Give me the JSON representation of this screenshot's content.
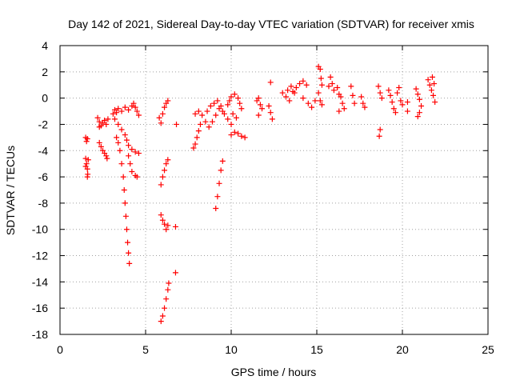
{
  "chart_data": {
    "type": "scatter",
    "title": "Day 142 of 2021, Sidereal Day-to-day VTEC variation (SDTVAR) for receiver xmis",
    "xlabel": "GPS time / hours",
    "ylabel": "SDTVAR / TECUs",
    "xlim": [
      0,
      25
    ],
    "ylim": [
      -18,
      4
    ],
    "xticks": [
      0,
      5,
      10,
      15,
      20,
      25
    ],
    "yticks": [
      4,
      2,
      0,
      -2,
      -4,
      -6,
      -8,
      -10,
      -12,
      -14,
      -16,
      -18
    ],
    "grid": true,
    "marker": "+",
    "color": "#ff0000",
    "series": [
      {
        "name": "SDTVAR",
        "points": [
          [
            1.5,
            -3.0
          ],
          [
            1.55,
            -3.3
          ],
          [
            1.6,
            -3.1
          ],
          [
            1.5,
            -4.6
          ],
          [
            1.55,
            -5.0
          ],
          [
            1.6,
            -5.4
          ],
          [
            1.62,
            -5.8
          ],
          [
            1.6,
            -6.0
          ],
          [
            1.5,
            -5.2
          ],
          [
            1.65,
            -4.7
          ],
          [
            2.2,
            -1.5
          ],
          [
            2.3,
            -1.8
          ],
          [
            2.4,
            -2.1
          ],
          [
            2.5,
            -1.9
          ],
          [
            2.6,
            -1.7
          ],
          [
            2.7,
            -2.0
          ],
          [
            2.8,
            -1.6
          ],
          [
            2.3,
            -2.2
          ],
          [
            2.3,
            -3.4
          ],
          [
            2.4,
            -3.7
          ],
          [
            2.5,
            -4.0
          ],
          [
            2.6,
            -4.2
          ],
          [
            2.7,
            -4.4
          ],
          [
            2.75,
            -4.6
          ],
          [
            3.1,
            -1.2
          ],
          [
            3.2,
            -0.9
          ],
          [
            3.3,
            -1.1
          ],
          [
            3.4,
            -0.8
          ],
          [
            3.6,
            -1.0
          ],
          [
            3.8,
            -0.7
          ],
          [
            4.0,
            -0.9
          ],
          [
            4.2,
            -0.6
          ],
          [
            4.3,
            -0.4
          ],
          [
            4.4,
            -0.7
          ],
          [
            4.5,
            -1.0
          ],
          [
            4.6,
            -1.3
          ],
          [
            3.2,
            -1.6
          ],
          [
            3.4,
            -2.0
          ],
          [
            3.6,
            -2.4
          ],
          [
            3.8,
            -2.8
          ],
          [
            3.9,
            -3.2
          ],
          [
            4.0,
            -3.6
          ],
          [
            4.2,
            -3.9
          ],
          [
            4.4,
            -4.1
          ],
          [
            4.6,
            -4.2
          ],
          [
            3.3,
            -3.0
          ],
          [
            3.4,
            -3.4
          ],
          [
            3.5,
            -4.0
          ],
          [
            3.6,
            -5.0
          ],
          [
            3.7,
            -6.0
          ],
          [
            3.75,
            -7.0
          ],
          [
            3.8,
            -8.0
          ],
          [
            3.85,
            -9.0
          ],
          [
            3.9,
            -10.0
          ],
          [
            3.95,
            -11.0
          ],
          [
            4.0,
            -11.8
          ],
          [
            4.05,
            -12.6
          ],
          [
            4.0,
            -4.4
          ],
          [
            4.1,
            -5.0
          ],
          [
            4.2,
            -5.6
          ],
          [
            4.4,
            -5.9
          ],
          [
            4.5,
            -6.0
          ],
          [
            5.8,
            -1.5
          ],
          [
            5.9,
            -1.9
          ],
          [
            6.0,
            -1.2
          ],
          [
            6.1,
            -0.7
          ],
          [
            6.2,
            -0.4
          ],
          [
            6.3,
            -0.2
          ],
          [
            5.9,
            -6.6
          ],
          [
            6.0,
            -6.0
          ],
          [
            6.1,
            -5.5
          ],
          [
            6.2,
            -5.0
          ],
          [
            6.3,
            -4.7
          ],
          [
            5.9,
            -8.9
          ],
          [
            6.0,
            -9.3
          ],
          [
            6.1,
            -9.6
          ],
          [
            6.2,
            -10.0
          ],
          [
            6.3,
            -9.7
          ],
          [
            5.9,
            -17.0
          ],
          [
            6.0,
            -16.6
          ],
          [
            6.1,
            -16.0
          ],
          [
            6.2,
            -15.3
          ],
          [
            6.3,
            -14.6
          ],
          [
            6.35,
            -14.1
          ],
          [
            6.8,
            -2.0
          ],
          [
            6.75,
            -9.8
          ],
          [
            6.75,
            -13.3
          ],
          [
            7.8,
            -3.8
          ],
          [
            7.9,
            -3.5
          ],
          [
            8.0,
            -3.0
          ],
          [
            8.1,
            -2.5
          ],
          [
            8.2,
            -2.0
          ],
          [
            7.9,
            -1.2
          ],
          [
            8.1,
            -1.0
          ],
          [
            8.3,
            -1.3
          ],
          [
            8.5,
            -1.8
          ],
          [
            8.7,
            -2.2
          ],
          [
            8.9,
            -1.8
          ],
          [
            9.1,
            -1.3
          ],
          [
            9.3,
            -0.8
          ],
          [
            9.5,
            -1.0
          ],
          [
            8.6,
            -1.0
          ],
          [
            8.8,
            -0.6
          ],
          [
            9.0,
            -0.4
          ],
          [
            9.2,
            -0.2
          ],
          [
            9.4,
            -0.6
          ],
          [
            9.6,
            -1.2
          ],
          [
            9.8,
            -1.6
          ],
          [
            10.0,
            -2.0
          ],
          [
            9.1,
            -8.4
          ],
          [
            9.2,
            -7.5
          ],
          [
            9.3,
            -6.5
          ],
          [
            9.4,
            -5.5
          ],
          [
            9.5,
            -4.8
          ],
          [
            9.8,
            -0.5
          ],
          [
            9.9,
            -0.2
          ],
          [
            10.0,
            0.1
          ],
          [
            10.2,
            0.3
          ],
          [
            10.4,
            0.0
          ],
          [
            10.5,
            -0.4
          ],
          [
            10.6,
            -0.8
          ],
          [
            10.1,
            -1.2
          ],
          [
            10.3,
            -1.5
          ],
          [
            10.0,
            -2.8
          ],
          [
            10.2,
            -2.6
          ],
          [
            10.4,
            -2.7
          ],
          [
            10.6,
            -2.9
          ],
          [
            10.8,
            -3.0
          ],
          [
            11.5,
            -0.2
          ],
          [
            11.6,
            0.0
          ],
          [
            11.7,
            -0.5
          ],
          [
            11.8,
            -0.8
          ],
          [
            11.6,
            -1.3
          ],
          [
            12.3,
            1.2
          ],
          [
            12.2,
            -0.6
          ],
          [
            12.3,
            -1.1
          ],
          [
            12.4,
            -1.6
          ],
          [
            13.0,
            0.4
          ],
          [
            13.2,
            0.1
          ],
          [
            13.4,
            -0.2
          ],
          [
            13.6,
            0.5
          ],
          [
            13.8,
            0.8
          ],
          [
            14.0,
            1.1
          ],
          [
            14.2,
            1.3
          ],
          [
            14.4,
            1.0
          ],
          [
            13.3,
            0.6
          ],
          [
            13.5,
            0.9
          ],
          [
            13.7,
            0.4
          ],
          [
            14.2,
            0.0
          ],
          [
            14.5,
            -0.4
          ],
          [
            14.7,
            -0.7
          ],
          [
            14.9,
            -0.2
          ],
          [
            15.1,
            2.4
          ],
          [
            15.2,
            2.2
          ],
          [
            15.25,
            1.5
          ],
          [
            15.3,
            1.0
          ],
          [
            15.1,
            0.4
          ],
          [
            15.2,
            -0.2
          ],
          [
            15.3,
            -0.5
          ],
          [
            15.8,
            1.6
          ],
          [
            15.9,
            1.1
          ],
          [
            16.0,
            0.6
          ],
          [
            15.7,
            0.9
          ],
          [
            16.2,
            0.8
          ],
          [
            16.3,
            0.3
          ],
          [
            16.4,
            0.1
          ],
          [
            16.5,
            -0.4
          ],
          [
            16.6,
            -0.8
          ],
          [
            16.3,
            -1.0
          ],
          [
            17.0,
            0.9
          ],
          [
            17.1,
            0.2
          ],
          [
            17.2,
            -0.4
          ],
          [
            17.6,
            0.1
          ],
          [
            17.7,
            -0.4
          ],
          [
            17.8,
            -0.7
          ],
          [
            18.6,
            0.9
          ],
          [
            18.7,
            0.4
          ],
          [
            18.8,
            0.0
          ],
          [
            18.7,
            -2.4
          ],
          [
            18.65,
            -2.9
          ],
          [
            19.2,
            0.6
          ],
          [
            19.3,
            0.2
          ],
          [
            19.4,
            -0.3
          ],
          [
            19.5,
            -0.8
          ],
          [
            19.6,
            -1.1
          ],
          [
            19.7,
            0.4
          ],
          [
            19.8,
            0.8
          ],
          [
            19.9,
            -0.2
          ],
          [
            20.0,
            -0.5
          ],
          [
            20.3,
            -0.3
          ],
          [
            20.3,
            -1.0
          ],
          [
            20.8,
            0.7
          ],
          [
            20.9,
            0.3
          ],
          [
            21.0,
            -0.1
          ],
          [
            21.1,
            -0.6
          ],
          [
            21.0,
            -1.1
          ],
          [
            20.9,
            -1.4
          ],
          [
            21.5,
            1.4
          ],
          [
            21.6,
            1.0
          ],
          [
            21.7,
            0.6
          ],
          [
            21.8,
            0.2
          ],
          [
            21.9,
            -0.3
          ],
          [
            21.75,
            1.6
          ],
          [
            21.85,
            1.1
          ]
        ]
      }
    ]
  }
}
